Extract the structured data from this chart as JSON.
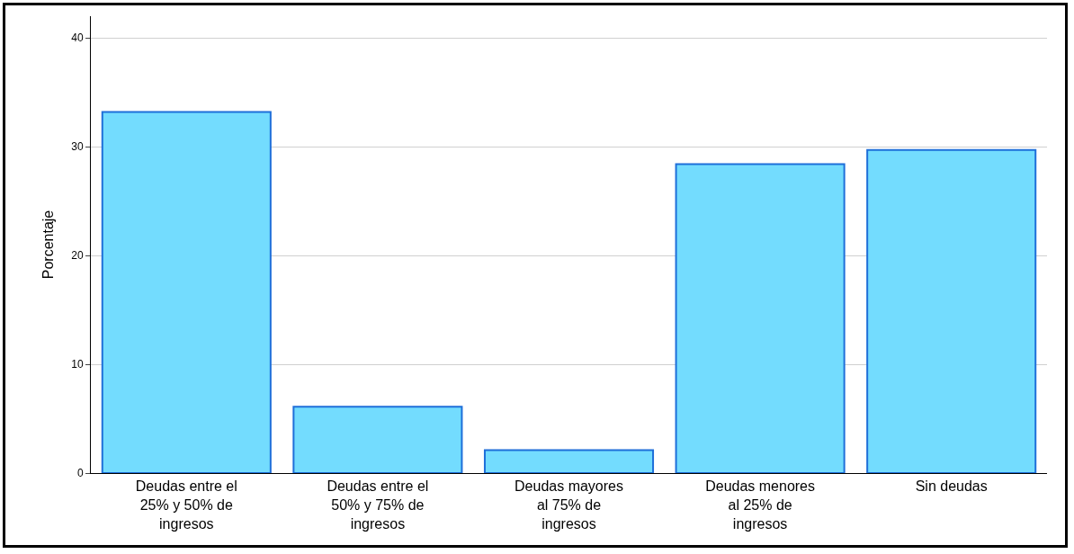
{
  "chart_data": {
    "type": "bar",
    "ylabel": "Porcentaje",
    "categories": [
      "Deudas entre el 25% y 50% de ingresos",
      "Deudas entre el 50% y 75% de ingresos",
      "Deudas mayores al 75% de ingresos",
      "Deudas menores al 25% de ingresos",
      "Sin deudas"
    ],
    "values": [
      33.2,
      6.1,
      2.1,
      28.4,
      29.7
    ],
    "color": "#73dcfe",
    "ylim": [
      0,
      42
    ],
    "yticks": [
      0,
      10,
      20,
      30,
      40
    ],
    "grid": "y"
  }
}
